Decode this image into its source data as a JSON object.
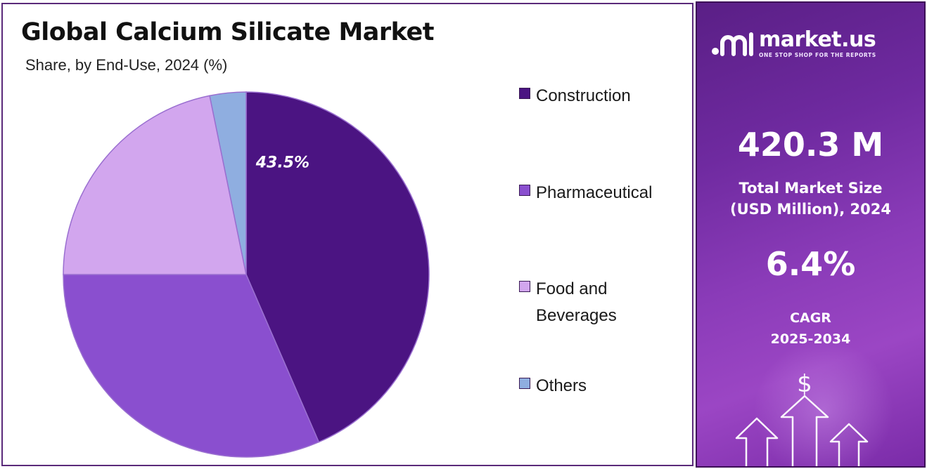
{
  "chart_data": {
    "type": "pie",
    "title": "Global Calcium Silicate Market",
    "subtitle": "Share, by End-Use, 2024 (%)",
    "categories": [
      "Construction",
      "Pharmaceutical",
      "Food and Beverages",
      "Others"
    ],
    "values": [
      43.5,
      31.5,
      21.8,
      3.2
    ],
    "colors": [
      "#4b1482",
      "#8a4fcf",
      "#d2a6ee",
      "#8faee0"
    ],
    "data_labels": [
      "43.5%",
      "",
      "",
      ""
    ],
    "legend_position": "right"
  },
  "legend": {
    "items": [
      {
        "lines": [
          "Construction"
        ],
        "color": "#4b1482"
      },
      {
        "lines": [
          "Pharmaceutical"
        ],
        "color": "#8a4fcf"
      },
      {
        "lines": [
          "Food and",
          "Beverages"
        ],
        "color": "#d2a6ee"
      },
      {
        "lines": [
          "Others"
        ],
        "color": "#8faee0"
      }
    ]
  },
  "side_panel": {
    "brand_name": "market.us",
    "brand_tagline": "ONE STOP SHOP FOR THE REPORTS",
    "market_size_value": "420.3 M",
    "market_size_label_line1": "Total Market Size",
    "market_size_label_line2": "(USD Million), 2024",
    "cagr_value": "6.4%",
    "cagr_label_line1": "CAGR",
    "cagr_label_line2": "2025-2034",
    "icon_dollar": "$",
    "icons": [
      "market-us-logo-icon",
      "growth-arrows-icon",
      "dollar-icon"
    ]
  }
}
